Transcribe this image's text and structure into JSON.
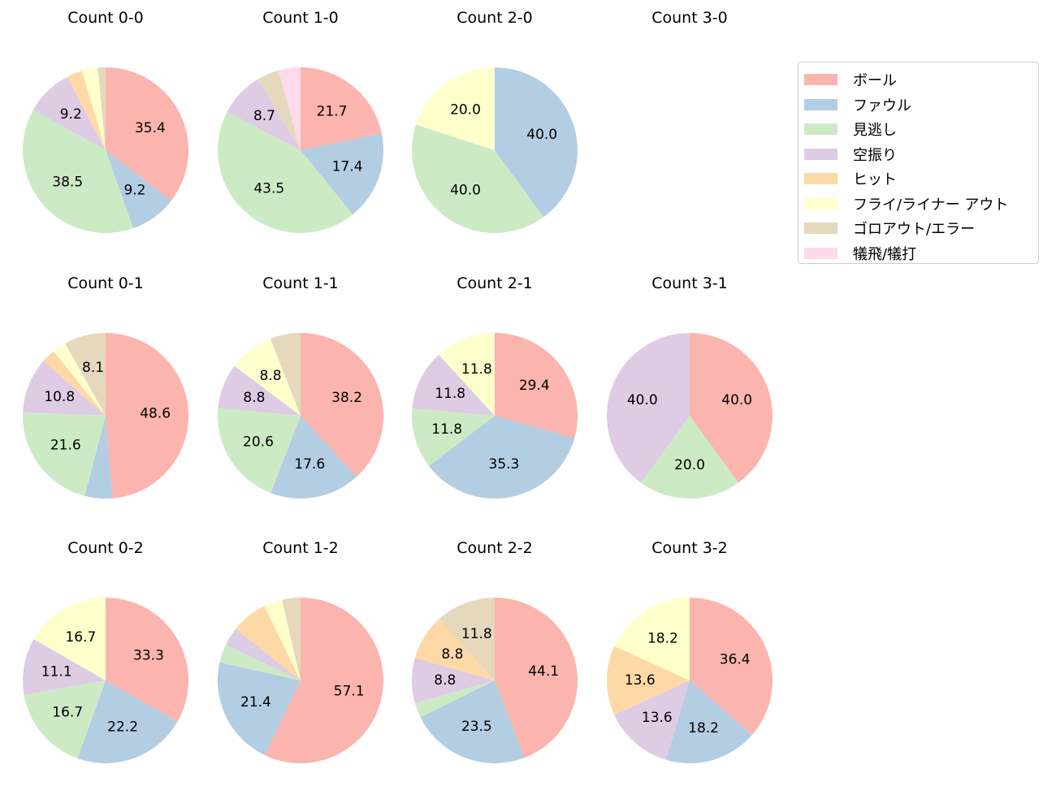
{
  "chart_data": {
    "type": "pie",
    "legend": {
      "placement": "right",
      "entries": [
        "ボール",
        "ファウル",
        "見逃し",
        "空振り",
        "ヒット",
        "フライ/ライナー アウト",
        "ゴロアウト/エラー",
        "犠飛/犠打"
      ]
    },
    "colors": [
      "#fbb4ae",
      "#b3cde3",
      "#ccebc5",
      "#decbe4",
      "#fed9a6",
      "#ffffcc",
      "#e5d8bd",
      "#fddaec"
    ],
    "pies": [
      {
        "title": "Count 0-0",
        "values": [
          35.4,
          9.2,
          38.5,
          9.2,
          3.1,
          3.1,
          1.5,
          0
        ]
      },
      {
        "title": "Count 1-0",
        "values": [
          21.7,
          17.4,
          43.5,
          8.7,
          0,
          0,
          4.3,
          4.3
        ]
      },
      {
        "title": "Count 2-0",
        "values": [
          0,
          40.0,
          40.0,
          0,
          0,
          20.0,
          0,
          0
        ]
      },
      {
        "title": "Count 3-0",
        "values": []
      },
      {
        "title": "Count 0-1",
        "values": [
          48.6,
          5.4,
          21.6,
          10.8,
          2.7,
          2.7,
          8.1,
          0
        ]
      },
      {
        "title": "Count 1-1",
        "values": [
          38.2,
          17.6,
          20.6,
          8.8,
          0,
          8.8,
          5.9,
          0
        ]
      },
      {
        "title": "Count 2-1",
        "values": [
          29.4,
          35.3,
          11.8,
          11.8,
          0,
          11.8,
          0,
          0
        ]
      },
      {
        "title": "Count 3-1",
        "values": [
          40.0,
          0,
          20.0,
          40.0,
          0,
          0,
          0,
          0
        ]
      },
      {
        "title": "Count 0-2",
        "values": [
          33.3,
          22.2,
          16.7,
          11.1,
          0,
          16.7,
          0,
          0
        ]
      },
      {
        "title": "Count 1-2",
        "values": [
          57.1,
          21.4,
          3.6,
          3.6,
          7.1,
          3.6,
          3.6,
          0
        ]
      },
      {
        "title": "Count 2-2",
        "values": [
          44.1,
          23.5,
          2.9,
          8.8,
          8.8,
          0,
          11.8,
          0
        ]
      },
      {
        "title": "Count 3-2",
        "values": [
          36.4,
          18.2,
          0,
          13.6,
          13.6,
          18.2,
          0,
          0
        ]
      }
    ]
  }
}
